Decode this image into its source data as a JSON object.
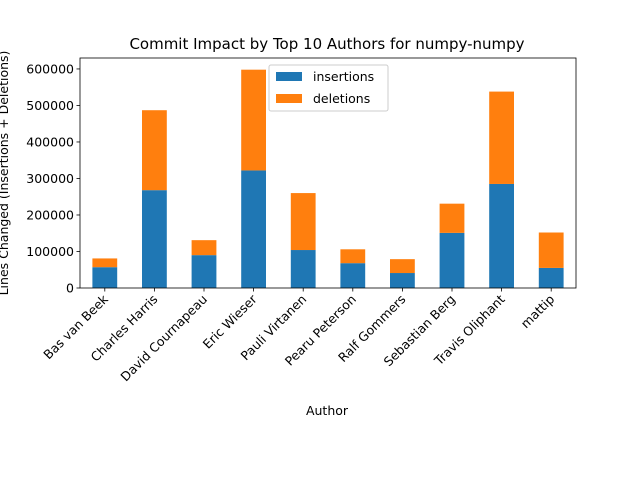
{
  "chart_data": {
    "type": "bar",
    "stacked": true,
    "title": "Commit Impact by Top 10 Authors for numpy-numpy",
    "xlabel": "Author",
    "ylabel": "Lines Changed (Insertions + Deletions)",
    "categories": [
      "Bas van Beek",
      "Charles Harris",
      "David Cournapeau",
      "Eric Wieser",
      "Pauli Virtanen",
      "Pearu Peterson",
      "Ralf Gommers",
      "Sebastian Berg",
      "Travis Oliphant",
      "mattip"
    ],
    "series": [
      {
        "name": "insertions",
        "color": "#1f77b4",
        "values": [
          57000,
          268000,
          90000,
          322000,
          104000,
          68000,
          41000,
          151000,
          285000,
          55000
        ]
      },
      {
        "name": "deletions",
        "color": "#ff7f0e",
        "values": [
          24000,
          219000,
          41000,
          276000,
          156000,
          38000,
          38000,
          80000,
          253000,
          97000
        ]
      }
    ],
    "ylim": [
      0,
      630000
    ],
    "yticks": [
      0,
      100000,
      200000,
      300000,
      400000,
      500000,
      600000
    ],
    "ytick_labels": [
      "0",
      "100000",
      "200000",
      "300000",
      "400000",
      "500000",
      "600000"
    ],
    "legend_position": "top-center",
    "grid": false
  }
}
